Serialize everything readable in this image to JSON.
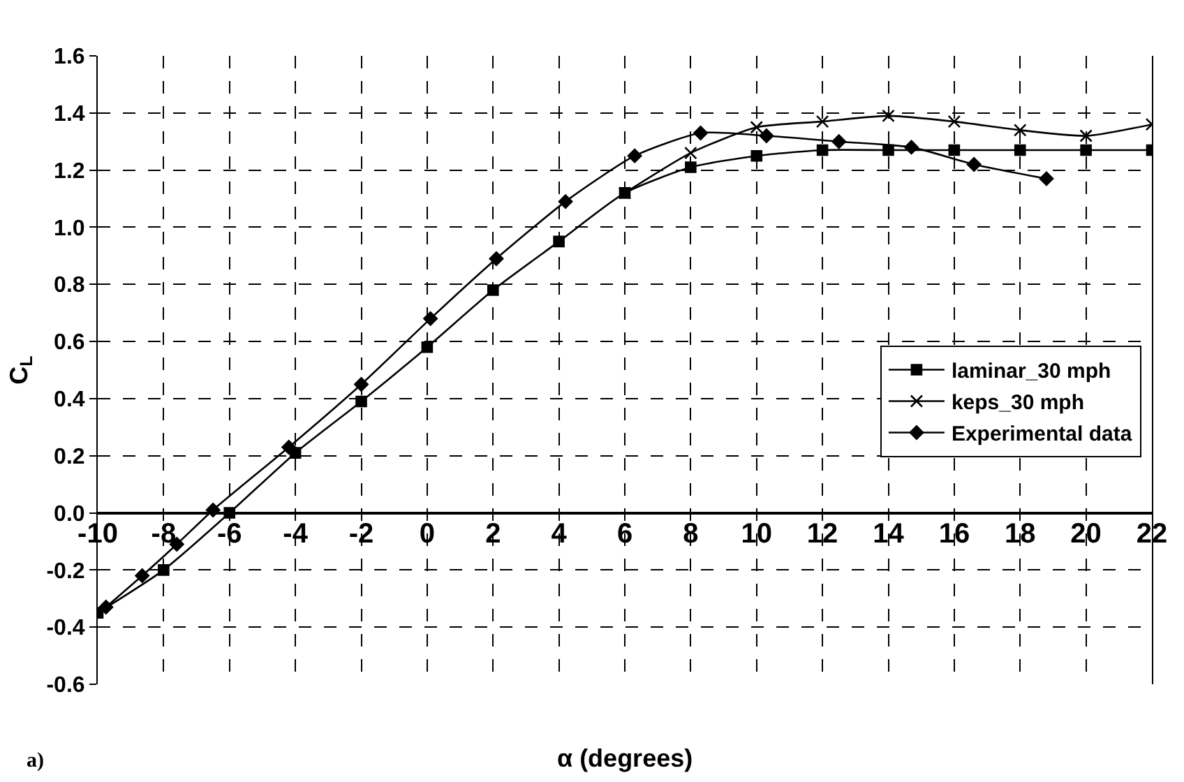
{
  "chart_data": {
    "type": "line",
    "xlabel": "α (degrees)",
    "ylabel": "C$_{L}$",
    "annotations": [
      "a)"
    ],
    "xlim": [
      -10,
      22
    ],
    "xticks": [
      -10,
      -8,
      -6,
      -4,
      -2,
      0,
      2,
      4,
      6,
      8,
      10,
      12,
      14,
      16,
      18,
      20,
      22
    ],
    "ylim": [
      -0.6,
      1.6
    ],
    "yticks": [
      {
        "value": -0.6,
        "label": "-0.6"
      },
      {
        "value": -0.4,
        "label": "-0.4"
      },
      {
        "value": -0.2,
        "label": "-0.2"
      },
      {
        "value": 0,
        "label": "0.0"
      },
      {
        "value": 0.2,
        "label": "0.2"
      },
      {
        "value": 0.4,
        "label": "0.4"
      },
      {
        "value": 0.6,
        "label": "0.6"
      },
      {
        "value": 0.8,
        "label": "0.8"
      },
      {
        "value": 1.0,
        "label": "1.0"
      },
      {
        "value": 1.2,
        "label": "1.2"
      },
      {
        "value": 1.4,
        "label": "1.4"
      },
      {
        "value": 1.6,
        "label": "1.6"
      }
    ],
    "grid": true,
    "legend": "right",
    "series": [
      {
        "name": "laminar_30 mph",
        "color": "#000000",
        "marker": "square",
        "x": [
          -10,
          -8,
          -6,
          -4,
          -2,
          0,
          2,
          4,
          6,
          8,
          10,
          12,
          14,
          16,
          18,
          20,
          22
        ],
        "values": [
          -0.35,
          -0.2,
          0.0,
          0.21,
          0.39,
          0.58,
          0.78,
          0.95,
          1.12,
          1.21,
          1.25,
          1.27,
          1.27,
          1.27,
          1.27,
          1.27,
          1.27
        ]
      },
      {
        "name": "keps_30 mph",
        "color": "#000000",
        "marker": "cross",
        "x": [
          6,
          8,
          10,
          12,
          14,
          16,
          18,
          20,
          22
        ],
        "values": [
          1.12,
          1.26,
          1.35,
          1.37,
          1.39,
          1.37,
          1.34,
          1.32,
          1.36
        ]
      },
      {
        "name": "Experimental data",
        "color": "#000000",
        "marker": "diamond",
        "x": [
          -9.75,
          -8.65,
          -7.6,
          -6.5,
          -4.2,
          -2.0,
          0.1,
          2.1,
          4.2,
          6.3,
          8.3,
          10.3,
          12.5,
          14.7,
          16.6,
          18.8
        ],
        "values": [
          -0.33,
          -0.22,
          -0.11,
          0.01,
          0.23,
          0.45,
          0.68,
          0.89,
          1.09,
          1.25,
          1.33,
          1.32,
          1.3,
          1.28,
          1.22,
          1.17
        ]
      }
    ]
  }
}
